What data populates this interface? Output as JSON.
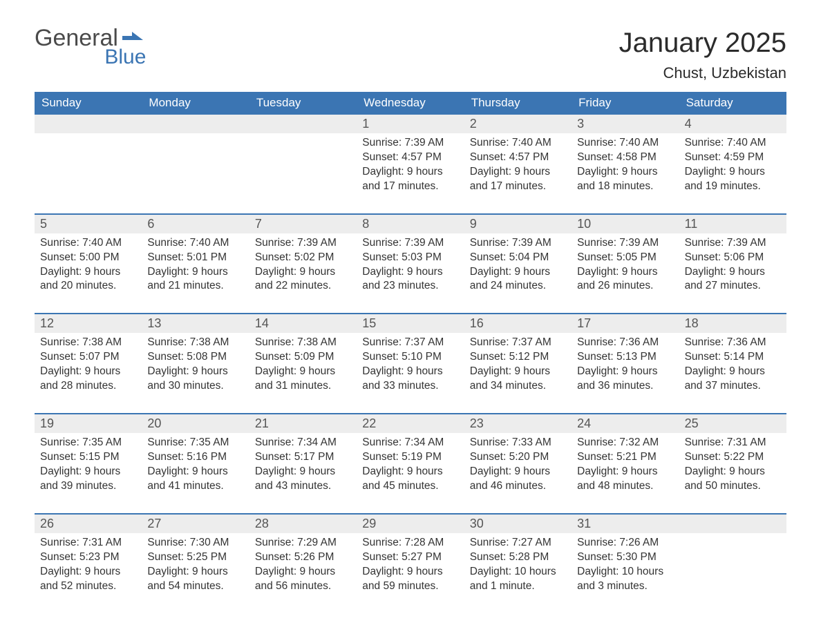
{
  "logo": {
    "general": "General",
    "blue": "Blue",
    "flag_color": "#3b75b3"
  },
  "title": "January 2025",
  "location": "Chust, Uzbekistan",
  "colors": {
    "header_bg": "#3b75b3",
    "header_text": "#ffffff",
    "daynum_bg": "#ededed",
    "border": "#3b75b3",
    "body_text": "#333333"
  },
  "weekdays": [
    "Sunday",
    "Monday",
    "Tuesday",
    "Wednesday",
    "Thursday",
    "Friday",
    "Saturday"
  ],
  "weeks": [
    [
      null,
      null,
      null,
      {
        "n": "1",
        "sunrise": "7:39 AM",
        "sunset": "4:57 PM",
        "daylight": "9 hours and 17 minutes."
      },
      {
        "n": "2",
        "sunrise": "7:40 AM",
        "sunset": "4:57 PM",
        "daylight": "9 hours and 17 minutes."
      },
      {
        "n": "3",
        "sunrise": "7:40 AM",
        "sunset": "4:58 PM",
        "daylight": "9 hours and 18 minutes."
      },
      {
        "n": "4",
        "sunrise": "7:40 AM",
        "sunset": "4:59 PM",
        "daylight": "9 hours and 19 minutes."
      }
    ],
    [
      {
        "n": "5",
        "sunrise": "7:40 AM",
        "sunset": "5:00 PM",
        "daylight": "9 hours and 20 minutes."
      },
      {
        "n": "6",
        "sunrise": "7:40 AM",
        "sunset": "5:01 PM",
        "daylight": "9 hours and 21 minutes."
      },
      {
        "n": "7",
        "sunrise": "7:39 AM",
        "sunset": "5:02 PM",
        "daylight": "9 hours and 22 minutes."
      },
      {
        "n": "8",
        "sunrise": "7:39 AM",
        "sunset": "5:03 PM",
        "daylight": "9 hours and 23 minutes."
      },
      {
        "n": "9",
        "sunrise": "7:39 AM",
        "sunset": "5:04 PM",
        "daylight": "9 hours and 24 minutes."
      },
      {
        "n": "10",
        "sunrise": "7:39 AM",
        "sunset": "5:05 PM",
        "daylight": "9 hours and 26 minutes."
      },
      {
        "n": "11",
        "sunrise": "7:39 AM",
        "sunset": "5:06 PM",
        "daylight": "9 hours and 27 minutes."
      }
    ],
    [
      {
        "n": "12",
        "sunrise": "7:38 AM",
        "sunset": "5:07 PM",
        "daylight": "9 hours and 28 minutes."
      },
      {
        "n": "13",
        "sunrise": "7:38 AM",
        "sunset": "5:08 PM",
        "daylight": "9 hours and 30 minutes."
      },
      {
        "n": "14",
        "sunrise": "7:38 AM",
        "sunset": "5:09 PM",
        "daylight": "9 hours and 31 minutes."
      },
      {
        "n": "15",
        "sunrise": "7:37 AM",
        "sunset": "5:10 PM",
        "daylight": "9 hours and 33 minutes."
      },
      {
        "n": "16",
        "sunrise": "7:37 AM",
        "sunset": "5:12 PM",
        "daylight": "9 hours and 34 minutes."
      },
      {
        "n": "17",
        "sunrise": "7:36 AM",
        "sunset": "5:13 PM",
        "daylight": "9 hours and 36 minutes."
      },
      {
        "n": "18",
        "sunrise": "7:36 AM",
        "sunset": "5:14 PM",
        "daylight": "9 hours and 37 minutes."
      }
    ],
    [
      {
        "n": "19",
        "sunrise": "7:35 AM",
        "sunset": "5:15 PM",
        "daylight": "9 hours and 39 minutes."
      },
      {
        "n": "20",
        "sunrise": "7:35 AM",
        "sunset": "5:16 PM",
        "daylight": "9 hours and 41 minutes."
      },
      {
        "n": "21",
        "sunrise": "7:34 AM",
        "sunset": "5:17 PM",
        "daylight": "9 hours and 43 minutes."
      },
      {
        "n": "22",
        "sunrise": "7:34 AM",
        "sunset": "5:19 PM",
        "daylight": "9 hours and 45 minutes."
      },
      {
        "n": "23",
        "sunrise": "7:33 AM",
        "sunset": "5:20 PM",
        "daylight": "9 hours and 46 minutes."
      },
      {
        "n": "24",
        "sunrise": "7:32 AM",
        "sunset": "5:21 PM",
        "daylight": "9 hours and 48 minutes."
      },
      {
        "n": "25",
        "sunrise": "7:31 AM",
        "sunset": "5:22 PM",
        "daylight": "9 hours and 50 minutes."
      }
    ],
    [
      {
        "n": "26",
        "sunrise": "7:31 AM",
        "sunset": "5:23 PM",
        "daylight": "9 hours and 52 minutes."
      },
      {
        "n": "27",
        "sunrise": "7:30 AM",
        "sunset": "5:25 PM",
        "daylight": "9 hours and 54 minutes."
      },
      {
        "n": "28",
        "sunrise": "7:29 AM",
        "sunset": "5:26 PM",
        "daylight": "9 hours and 56 minutes."
      },
      {
        "n": "29",
        "sunrise": "7:28 AM",
        "sunset": "5:27 PM",
        "daylight": "9 hours and 59 minutes."
      },
      {
        "n": "30",
        "sunrise": "7:27 AM",
        "sunset": "5:28 PM",
        "daylight": "10 hours and 1 minute."
      },
      {
        "n": "31",
        "sunrise": "7:26 AM",
        "sunset": "5:30 PM",
        "daylight": "10 hours and 3 minutes."
      },
      null
    ]
  ],
  "labels": {
    "sunrise": "Sunrise: ",
    "sunset": "Sunset: ",
    "daylight": "Daylight: "
  }
}
